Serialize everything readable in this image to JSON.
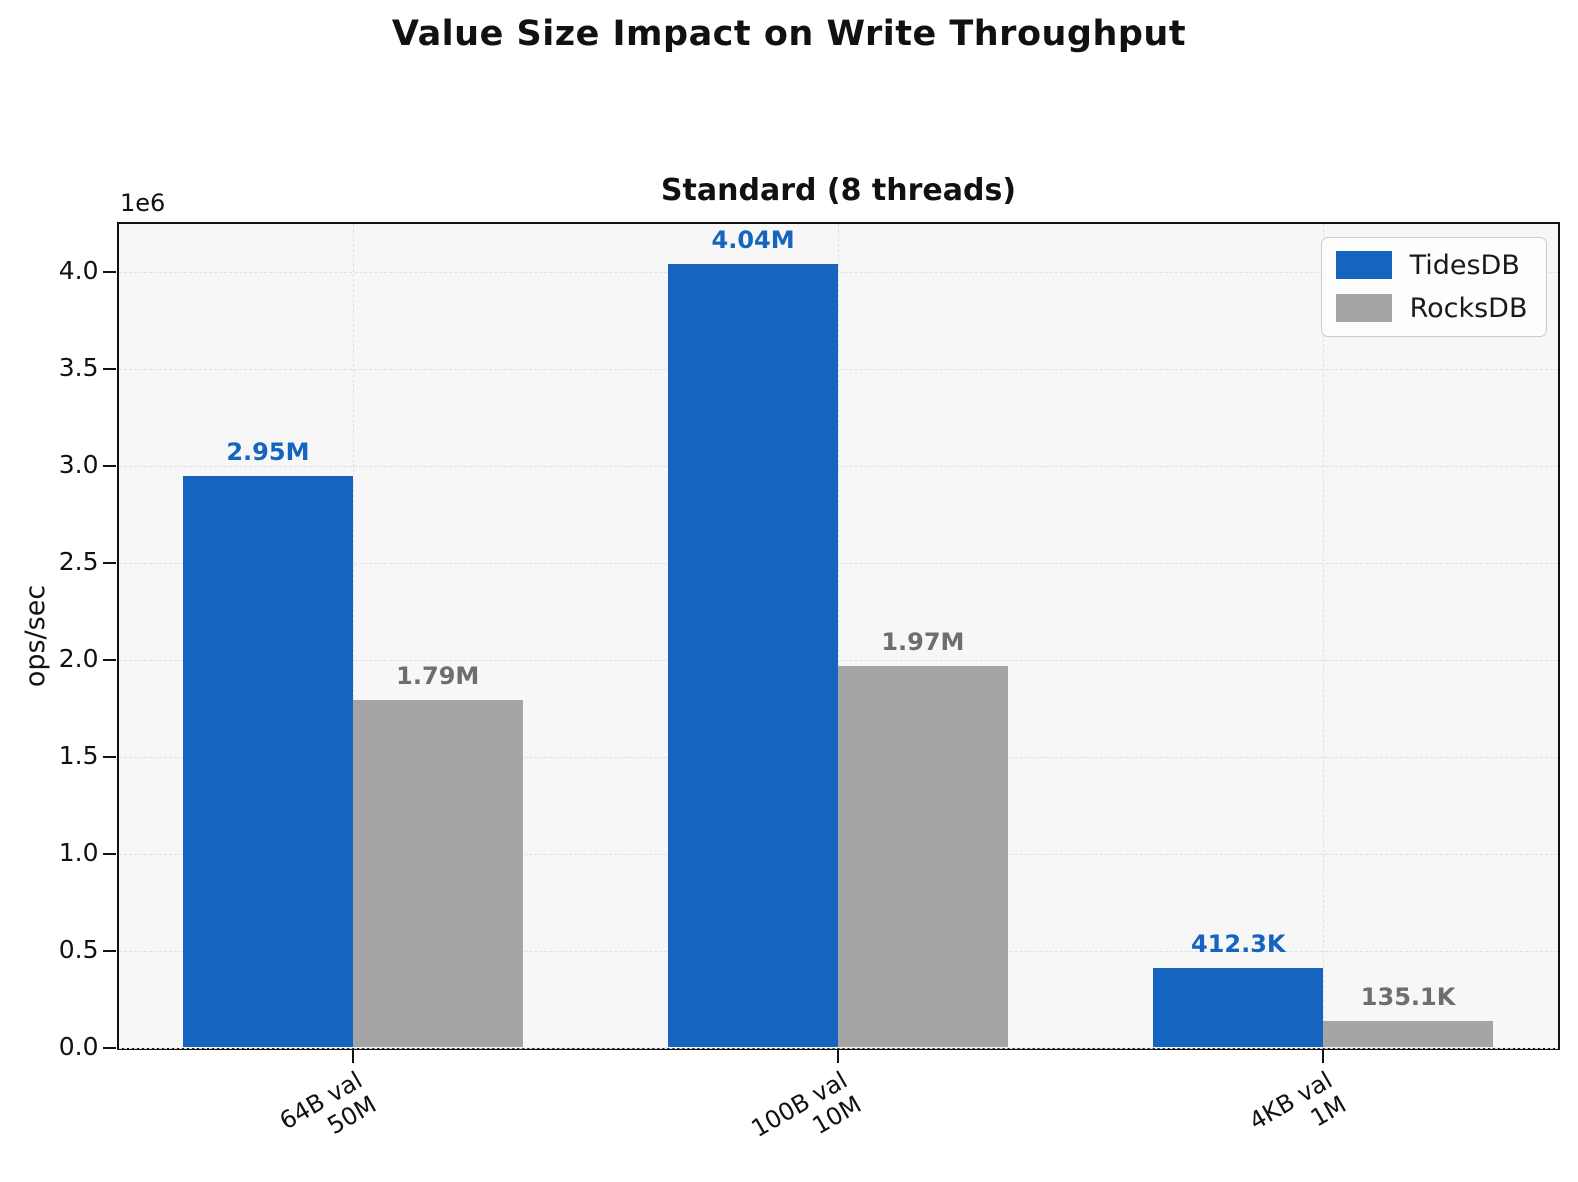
{
  "chart_data": {
    "type": "bar",
    "title": "Value Size Impact on Write Throughput",
    "subtitle": "Standard (8 threads)",
    "ylabel": "ops/sec",
    "offset_label": "1e6",
    "xlabel": "",
    "categories": [
      [
        "64B val",
        "50M"
      ],
      [
        "100B val",
        "10M"
      ],
      [
        "4KB val",
        "1M"
      ]
    ],
    "series": [
      {
        "name": "TidesDB",
        "color": "#1565c0",
        "label_color": "#1565c0",
        "values": [
          2950000,
          4040000,
          412300
        ],
        "value_labels": [
          "2.95M",
          "4.04M",
          "412.3K"
        ]
      },
      {
        "name": "RocksDB",
        "color": "#a5a5a5",
        "label_color": "#6e6e6e",
        "values": [
          1790000,
          1970000,
          135100
        ],
        "value_labels": [
          "1.79M",
          "1.97M",
          "135.1K"
        ]
      }
    ],
    "ylim": [
      0,
      4250000
    ],
    "yticks": [
      0,
      500000,
      1000000,
      1500000,
      2000000,
      2500000,
      3000000,
      3500000,
      4000000
    ],
    "ytick_labels": [
      "0.0",
      "0.5",
      "1.0",
      "1.5",
      "2.0",
      "2.5",
      "3.0",
      "3.5",
      "4.0"
    ],
    "grid": true,
    "grid_style": "dashed",
    "legend_position": "upper right"
  }
}
